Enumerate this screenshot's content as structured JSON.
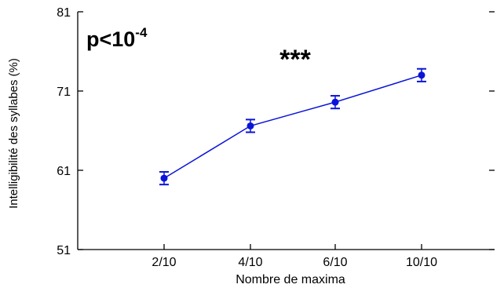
{
  "chart_data": {
    "type": "line",
    "categories": [
      "2/10",
      "4/10",
      "6/10",
      "10/10"
    ],
    "series": [
      {
        "values": [
          60.0,
          66.6,
          69.6,
          73.0
        ],
        "error": [
          0.8,
          0.8,
          0.8,
          0.8
        ],
        "color": "#0a14d8"
      }
    ],
    "xlabel": "Nombre de maxima",
    "ylabel": "Intelligibilité des syllabes (%)",
    "ylim": [
      51,
      81
    ],
    "yticks": [
      51,
      61,
      71,
      81
    ],
    "grid": false,
    "annotations": {
      "pvalue_base": "p<10",
      "pvalue_exp": "-4",
      "significance": "***"
    }
  }
}
